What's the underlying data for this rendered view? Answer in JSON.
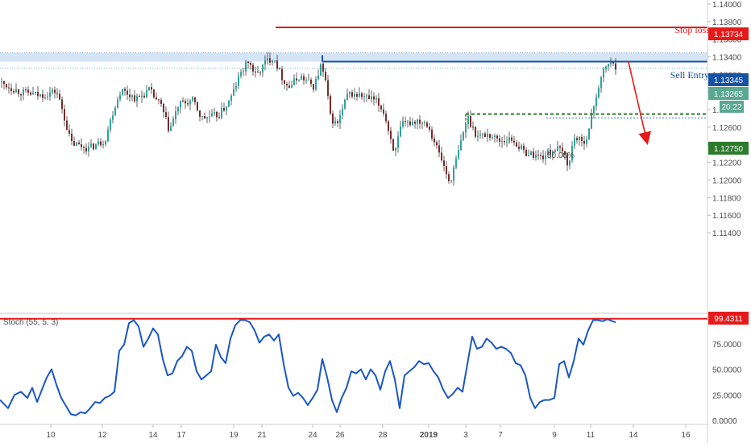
{
  "colors": {
    "up": "#26a69a",
    "down": "#7a2a2a",
    "wick": "#3d3d3d",
    "stop": "#e61a1a",
    "entry": "#1652a5",
    "target": "#2c7a2c",
    "stoch": "#1a57c4",
    "zone": "#cfe0f5",
    "grid": "#f0f0f0",
    "axis": "#e0e0e0"
  },
  "annotations": {
    "stop_label": "Stop loss",
    "stop_value": "1.13734",
    "entry_label": "Sell Entry",
    "entry_value": "1.13345",
    "last_value": "1.13265",
    "countdown": "20:22",
    "target_value": "1.12750",
    "fib_label": "50.00%",
    "stoch_title": "Stoch (55, 5, 3)",
    "stoch_value": "99.4311"
  },
  "chart_data": [
    {
      "type": "candlestick",
      "y_axis_ticks": [
        "1.14000",
        "1.13800",
        "1.13600",
        "1.13400",
        "1.13200",
        "1.13000",
        "1.12800",
        "1.12600",
        "1.12400",
        "1.12200",
        "1.12000",
        "1.11800",
        "1.11600",
        "1.11400"
      ],
      "ylim": [
        1.1131,
        1.1408
      ],
      "x_axis_ticks": [
        "10",
        "12",
        "14",
        "17",
        "19",
        "21",
        "24",
        "26",
        "28",
        "2019",
        "3",
        "7",
        "9",
        "11",
        "14",
        "16"
      ],
      "levels": {
        "stop_loss": 1.13734,
        "sell_entry": 1.13345,
        "last_price": 1.13265,
        "take_profit": 1.1275,
        "fib_50": 1.12705
      },
      "resistance_zone": [
        1.13345,
        1.13445
      ],
      "projection": {
        "from": 1.1334,
        "to": 1.1247
      }
    },
    {
      "type": "line",
      "name": "Stoch (55, 5, 3)",
      "y_axis_ticks": [
        "99.4311",
        "75.0000",
        "50.0000",
        "25.0000",
        "0.0000"
      ],
      "ylim": [
        0,
        100
      ],
      "overbought_line": 99.4311,
      "points": [
        [
          0,
          20
        ],
        [
          10,
          12
        ],
        [
          18,
          25
        ],
        [
          26,
          28
        ],
        [
          34,
          22
        ],
        [
          40,
          32
        ],
        [
          46,
          18
        ],
        [
          52,
          30
        ],
        [
          58,
          42
        ],
        [
          64,
          50
        ],
        [
          70,
          35
        ],
        [
          76,
          22
        ],
        [
          82,
          14
        ],
        [
          88,
          6
        ],
        [
          94,
          5
        ],
        [
          100,
          8
        ],
        [
          106,
          7
        ],
        [
          112,
          12
        ],
        [
          118,
          18
        ],
        [
          124,
          17
        ],
        [
          130,
          22
        ],
        [
          136,
          24
        ],
        [
          142,
          28
        ],
        [
          148,
          68
        ],
        [
          154,
          74
        ],
        [
          160,
          95
        ],
        [
          166,
          98
        ],
        [
          172,
          92
        ],
        [
          178,
          72
        ],
        [
          184,
          80
        ],
        [
          190,
          90
        ],
        [
          196,
          84
        ],
        [
          202,
          60
        ],
        [
          208,
          44
        ],
        [
          214,
          46
        ],
        [
          220,
          58
        ],
        [
          226,
          63
        ],
        [
          232,
          72
        ],
        [
          238,
          68
        ],
        [
          244,
          48
        ],
        [
          250,
          40
        ],
        [
          256,
          44
        ],
        [
          262,
          48
        ],
        [
          268,
          74
        ],
        [
          274,
          62
        ],
        [
          280,
          56
        ],
        [
          286,
          80
        ],
        [
          292,
          93
        ],
        [
          298,
          98
        ],
        [
          304,
          98
        ],
        [
          310,
          96
        ],
        [
          316,
          88
        ],
        [
          322,
          76
        ],
        [
          328,
          82
        ],
        [
          334,
          84
        ],
        [
          340,
          78
        ],
        [
          346,
          84
        ],
        [
          352,
          55
        ],
        [
          358,
          32
        ],
        [
          364,
          24
        ],
        [
          370,
          27
        ],
        [
          376,
          22
        ],
        [
          382,
          15
        ],
        [
          388,
          22
        ],
        [
          394,
          30
        ],
        [
          400,
          60
        ],
        [
          406,
          42
        ],
        [
          412,
          20
        ],
        [
          418,
          8
        ],
        [
          424,
          22
        ],
        [
          430,
          32
        ],
        [
          436,
          48
        ],
        [
          442,
          46
        ],
        [
          448,
          50
        ],
        [
          454,
          40
        ],
        [
          460,
          50
        ],
        [
          466,
          44
        ],
        [
          472,
          30
        ],
        [
          478,
          48
        ],
        [
          484,
          58
        ],
        [
          490,
          40
        ],
        [
          496,
          12
        ],
        [
          502,
          44
        ],
        [
          508,
          48
        ],
        [
          514,
          52
        ],
        [
          520,
          58
        ],
        [
          526,
          55
        ],
        [
          532,
          56
        ],
        [
          538,
          48
        ],
        [
          544,
          42
        ],
        [
          550,
          30
        ],
        [
          556,
          22
        ],
        [
          562,
          26
        ],
        [
          568,
          32
        ],
        [
          574,
          28
        ],
        [
          580,
          55
        ],
        [
          586,
          82
        ],
        [
          592,
          70
        ],
        [
          598,
          72
        ],
        [
          604,
          80
        ],
        [
          610,
          76
        ],
        [
          616,
          70
        ],
        [
          622,
          72
        ],
        [
          628,
          70
        ],
        [
          634,
          66
        ],
        [
          640,
          56
        ],
        [
          646,
          54
        ],
        [
          652,
          44
        ],
        [
          658,
          22
        ],
        [
          664,
          12
        ],
        [
          670,
          18
        ],
        [
          676,
          20
        ],
        [
          682,
          20
        ],
        [
          688,
          22
        ],
        [
          694,
          55
        ],
        [
          700,
          58
        ],
        [
          706,
          42
        ],
        [
          712,
          58
        ],
        [
          718,
          80
        ],
        [
          724,
          74
        ],
        [
          730,
          88
        ],
        [
          736,
          98
        ],
        [
          742,
          98
        ],
        [
          748,
          97
        ],
        [
          754,
          99
        ],
        [
          760,
          97
        ],
        [
          764,
          96
        ]
      ]
    }
  ]
}
